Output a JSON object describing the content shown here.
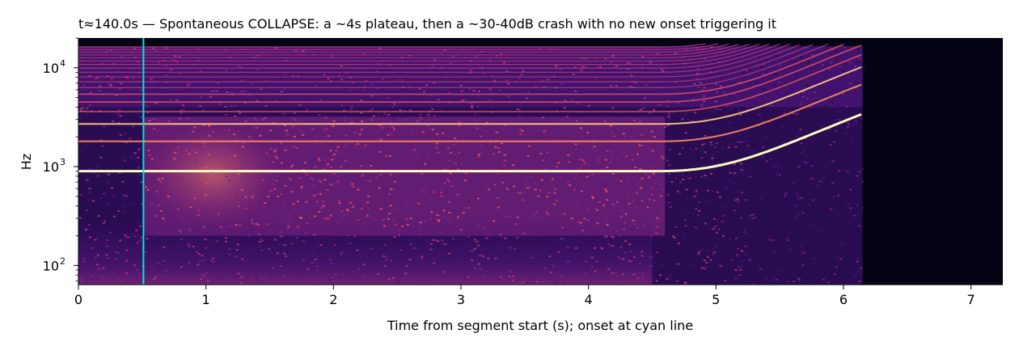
{
  "chart_data": {
    "type": "heatmap",
    "title": "t≈140.0s — Spontaneous COLLAPSE: a ~4s plateau, then a ~30-40dB crash with no new onset triggering it",
    "xlabel": "Time from segment start (s); onset at cyan line",
    "ylabel": "Hz",
    "xlim": [
      0,
      7.25
    ],
    "ylim": [
      64,
      20000
    ],
    "yscale": "log",
    "x_ticks": [
      0,
      1,
      2,
      3,
      4,
      5,
      6,
      7
    ],
    "x_tick_labels": [
      "0",
      "1",
      "2",
      "3",
      "4",
      "5",
      "6",
      "7"
    ],
    "y_ticks": [
      100,
      1000,
      10000
    ],
    "y_tick_labels": [
      "10",
      "10",
      "10"
    ],
    "y_tick_exponents": [
      "2",
      "3",
      "4"
    ],
    "grid": false,
    "colormap": "magma",
    "onset_line": {
      "x": 0.51,
      "color": "#00e5e5"
    },
    "harmonics_hz": [
      900,
      1800,
      2700,
      3600,
      4500,
      5400,
      6300,
      7200,
      8100,
      9000,
      9900,
      10800,
      11700,
      12600,
      13500,
      14400,
      15300,
      16200
    ],
    "pitch_rise": {
      "start_s": 4.5,
      "end_s": 6.15,
      "end_multiplier": 3.8
    },
    "signal_end_s": 6.15
  }
}
